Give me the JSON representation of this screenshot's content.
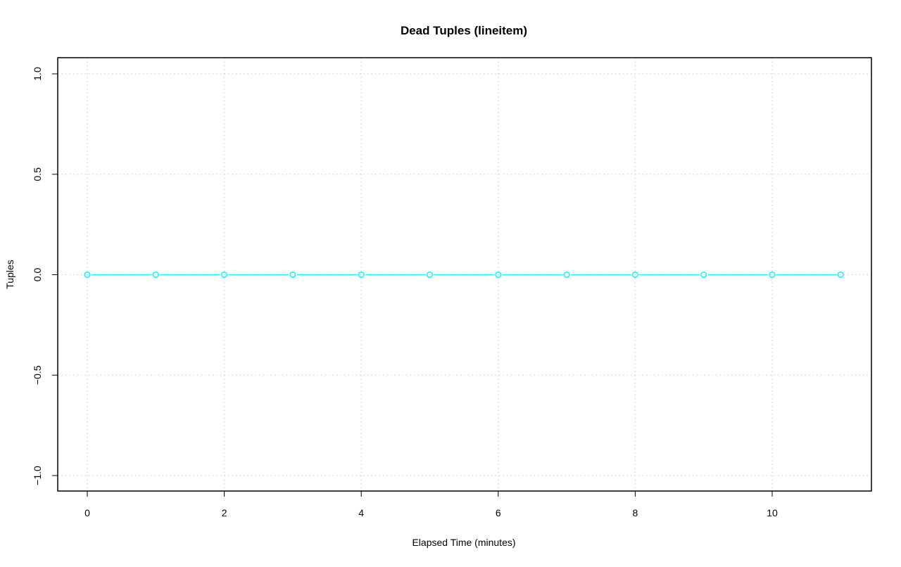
{
  "chart_data": {
    "type": "line",
    "title": "Dead Tuples (lineitem)",
    "xlabel": "Elapsed Time (minutes)",
    "ylabel": "Tuples",
    "x": [
      0,
      1,
      2,
      3,
      4,
      5,
      6,
      7,
      8,
      9,
      10,
      11
    ],
    "series": [
      {
        "values": [
          0,
          0,
          0,
          0,
          0,
          0,
          0,
          0,
          0,
          0,
          0,
          0
        ],
        "color": "#00ffff",
        "marker": "open-circle"
      }
    ],
    "xlim": [
      -0.43,
      11.43
    ],
    "ylim": [
      -1.08,
      1.08
    ],
    "xticks": [
      "0",
      "2",
      "4",
      "6",
      "8",
      "10"
    ],
    "yticks": [
      "-1.0",
      "-0.5",
      "0.0",
      "0.5",
      "1.0"
    ],
    "grid": true,
    "grid_color": "#d3d3d3"
  }
}
